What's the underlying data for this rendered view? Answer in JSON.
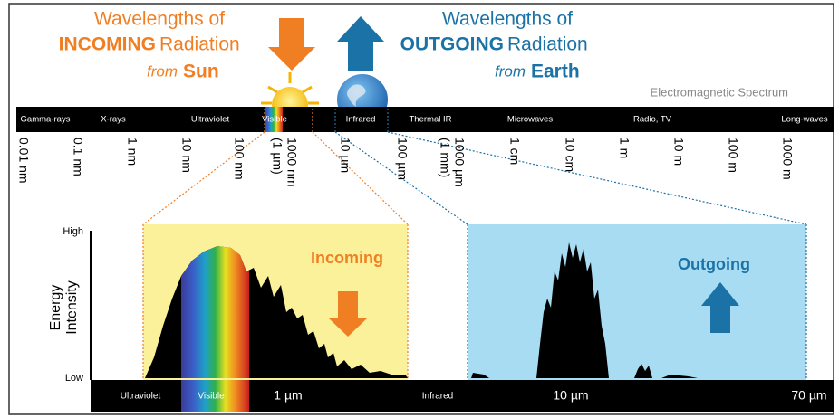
{
  "incoming": {
    "line1": "Wavelengths of",
    "keyword": "INCOMING",
    "rest": "Radiation",
    "from": "from",
    "source": "Sun"
  },
  "outgoing": {
    "line1": "Wavelengths of",
    "keyword": "OUTGOING",
    "rest": "Radiation",
    "from": "from",
    "source": "Earth"
  },
  "spectrum": {
    "title": "Electromagnetic Spectrum",
    "bands": [
      "Gamma-rays",
      "X-rays",
      "Ultraviolet",
      "Visible",
      "Infrared",
      "Thermal IR",
      "Microwaves",
      "Radio, TV",
      "Long-waves"
    ],
    "scale": [
      [
        "0.01 nm"
      ],
      [
        "0.1 nm"
      ],
      [
        "1 nm"
      ],
      [
        "10 nm"
      ],
      [
        "100 nm"
      ],
      [
        "1000 nm",
        "(1 µm)"
      ],
      [
        "10 µm"
      ],
      [
        "100 µm"
      ],
      [
        "1000 µm",
        "(1 mm)"
      ],
      [
        "1 cm"
      ],
      [
        "10 cm"
      ],
      [
        "1 m"
      ],
      [
        "10 m"
      ],
      [
        "100 m"
      ],
      [
        "1000 m"
      ]
    ]
  },
  "detail": {
    "y_high": "High",
    "y_low": "Low",
    "y_label": [
      "Energy",
      "Intensity"
    ],
    "incoming_label": "Incoming",
    "outgoing_label": "Outgoing",
    "bar": [
      "Ultraviolet",
      "Visible",
      "1 µm",
      "Infrared",
      "10 µm",
      "70 µm"
    ]
  }
}
